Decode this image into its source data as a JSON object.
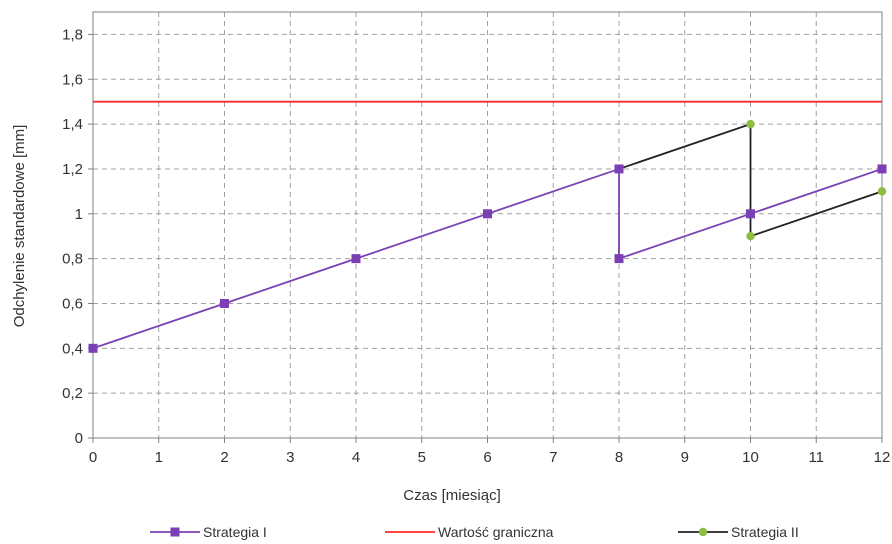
{
  "chart_data": {
    "type": "line",
    "xlabel": "Czas [miesiąc]",
    "ylabel": "Odchylenie standardowe [mm]",
    "x_ticks": [
      0,
      1,
      2,
      3,
      4,
      5,
      6,
      7,
      8,
      9,
      10,
      11,
      12
    ],
    "x_tick_labels": [
      "0",
      "1",
      "2",
      "3",
      "4",
      "5",
      "6",
      "7",
      "8",
      "9",
      "10",
      "11",
      "12"
    ],
    "y_ticks": [
      0,
      0.2,
      0.4,
      0.6,
      0.8,
      1.0,
      1.2,
      1.4,
      1.6,
      1.8
    ],
    "y_tick_labels": [
      "0",
      "0,2",
      "0,4",
      "0,6",
      "0,8",
      "1",
      "1,2",
      "1,4",
      "1,6",
      "1,8"
    ],
    "xlim": [
      0,
      12
    ],
    "ylim": [
      0,
      1.9
    ],
    "grid": true,
    "legend_position": "bottom",
    "series": [
      {
        "name": "Strategia I",
        "color": "#7b3fb5",
        "marker": "square",
        "points": [
          [
            0,
            0.4
          ],
          [
            2,
            0.6
          ],
          [
            4,
            0.8
          ],
          [
            6,
            1.0
          ],
          [
            8,
            1.2
          ],
          [
            8,
            0.8
          ],
          [
            10,
            1.0
          ],
          [
            12,
            1.2
          ]
        ]
      },
      {
        "name": "Wartość graniczna",
        "color": "#ff2a2a",
        "marker": "none",
        "points": [
          [
            0,
            1.5
          ],
          [
            12,
            1.5
          ]
        ]
      },
      {
        "name": "Strategia II",
        "color": "#222222",
        "marker": "circle",
        "marker_color": "#8cbf3f",
        "points": [
          [
            8,
            1.2
          ],
          [
            10,
            1.4
          ],
          [
            10,
            0.9
          ],
          [
            12,
            1.1
          ]
        ]
      }
    ]
  }
}
